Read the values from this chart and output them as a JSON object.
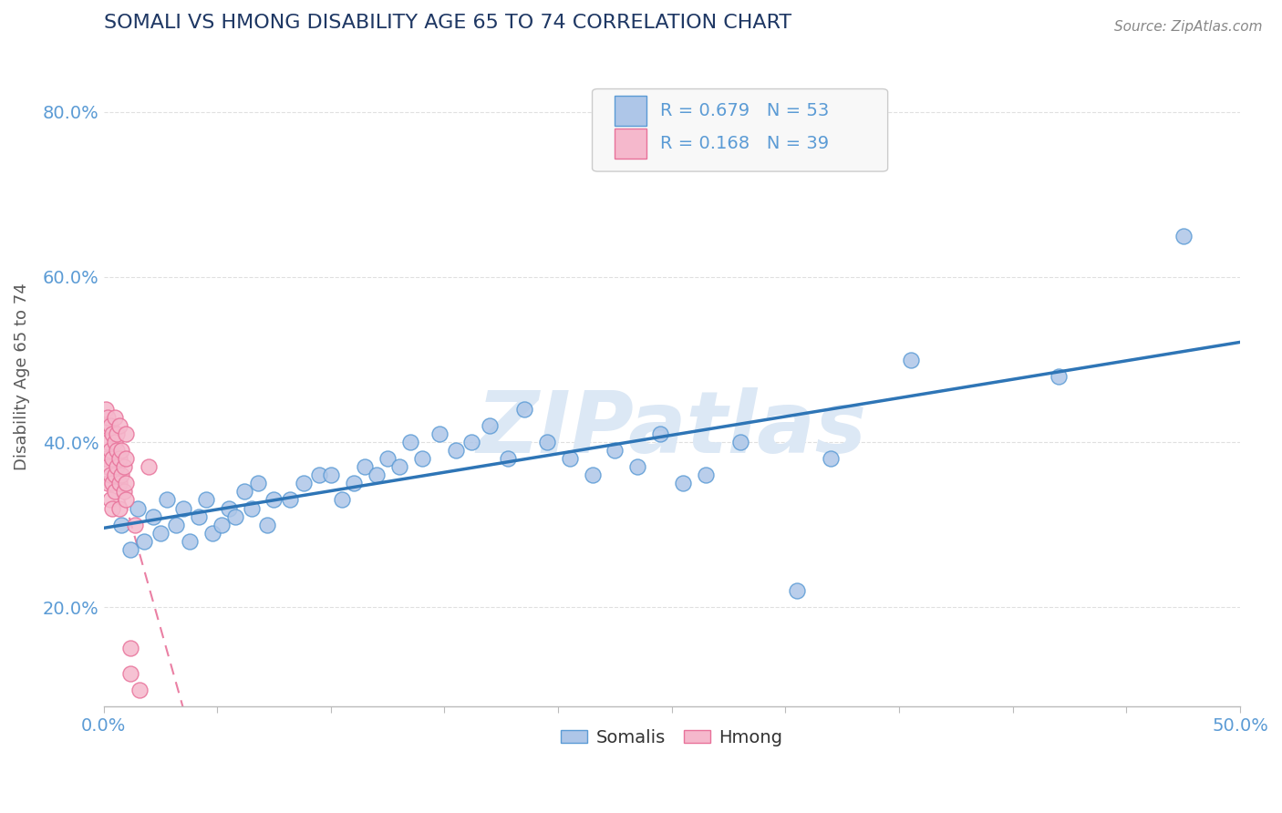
{
  "title": "SOMALI VS HMONG DISABILITY AGE 65 TO 74 CORRELATION CHART",
  "source_text": "Source: ZipAtlas.com",
  "ylabel": "Disability Age 65 to 74",
  "xlim": [
    0.0,
    0.5
  ],
  "ylim": [
    0.08,
    0.88
  ],
  "x_ticks": [
    0.0,
    0.05,
    0.1,
    0.15,
    0.2,
    0.25,
    0.3,
    0.35,
    0.4,
    0.45,
    0.5
  ],
  "y_ticks": [
    0.2,
    0.4,
    0.6,
    0.8
  ],
  "y_tick_labels": [
    "20.0%",
    "40.0%",
    "60.0%",
    "80.0%"
  ],
  "somali_color": "#aec6e8",
  "hmong_color": "#f5b8cc",
  "somali_edge_color": "#5b9bd5",
  "hmong_edge_color": "#e8729a",
  "regression_somali_color": "#2e75b6",
  "regression_hmong_color": "#e8729a",
  "ref_line_color": "#e8a0b4",
  "watermark_text": "ZIPatlas",
  "watermark_color": "#dce8f5",
  "R_somali": 0.679,
  "N_somali": 53,
  "R_hmong": 0.168,
  "N_hmong": 39,
  "background_color": "#ffffff",
  "grid_color": "#e0e0e0",
  "title_color": "#1f3864",
  "axis_label_color": "#595959",
  "tick_color": "#5b9bd5",
  "somali_x": [
    0.008,
    0.012,
    0.015,
    0.018,
    0.022,
    0.025,
    0.028,
    0.032,
    0.035,
    0.038,
    0.042,
    0.045,
    0.048,
    0.052,
    0.055,
    0.058,
    0.062,
    0.065,
    0.068,
    0.072,
    0.075,
    0.082,
    0.088,
    0.095,
    0.1,
    0.105,
    0.11,
    0.115,
    0.12,
    0.125,
    0.13,
    0.135,
    0.14,
    0.148,
    0.155,
    0.162,
    0.17,
    0.178,
    0.185,
    0.195,
    0.205,
    0.215,
    0.225,
    0.235,
    0.245,
    0.255,
    0.265,
    0.28,
    0.305,
    0.32,
    0.355,
    0.42,
    0.475
  ],
  "somali_y": [
    0.3,
    0.27,
    0.32,
    0.28,
    0.31,
    0.29,
    0.33,
    0.3,
    0.32,
    0.28,
    0.31,
    0.33,
    0.29,
    0.3,
    0.32,
    0.31,
    0.34,
    0.32,
    0.35,
    0.3,
    0.33,
    0.33,
    0.35,
    0.36,
    0.36,
    0.33,
    0.35,
    0.37,
    0.36,
    0.38,
    0.37,
    0.4,
    0.38,
    0.41,
    0.39,
    0.4,
    0.42,
    0.38,
    0.44,
    0.4,
    0.38,
    0.36,
    0.39,
    0.37,
    0.41,
    0.35,
    0.36,
    0.4,
    0.22,
    0.38,
    0.5,
    0.48,
    0.65
  ],
  "hmong_x": [
    0.001,
    0.001,
    0.001,
    0.002,
    0.002,
    0.002,
    0.002,
    0.003,
    0.003,
    0.003,
    0.003,
    0.004,
    0.004,
    0.004,
    0.004,
    0.005,
    0.005,
    0.005,
    0.005,
    0.006,
    0.006,
    0.006,
    0.007,
    0.007,
    0.007,
    0.007,
    0.008,
    0.008,
    0.009,
    0.009,
    0.01,
    0.01,
    0.01,
    0.01,
    0.012,
    0.012,
    0.014,
    0.016,
    0.02
  ],
  "hmong_y": [
    0.42,
    0.44,
    0.38,
    0.4,
    0.43,
    0.37,
    0.35,
    0.39,
    0.42,
    0.36,
    0.33,
    0.38,
    0.41,
    0.35,
    0.32,
    0.4,
    0.43,
    0.36,
    0.34,
    0.39,
    0.37,
    0.41,
    0.35,
    0.38,
    0.32,
    0.42,
    0.36,
    0.39,
    0.34,
    0.37,
    0.38,
    0.41,
    0.35,
    0.33,
    0.15,
    0.12,
    0.3,
    0.1,
    0.37
  ]
}
